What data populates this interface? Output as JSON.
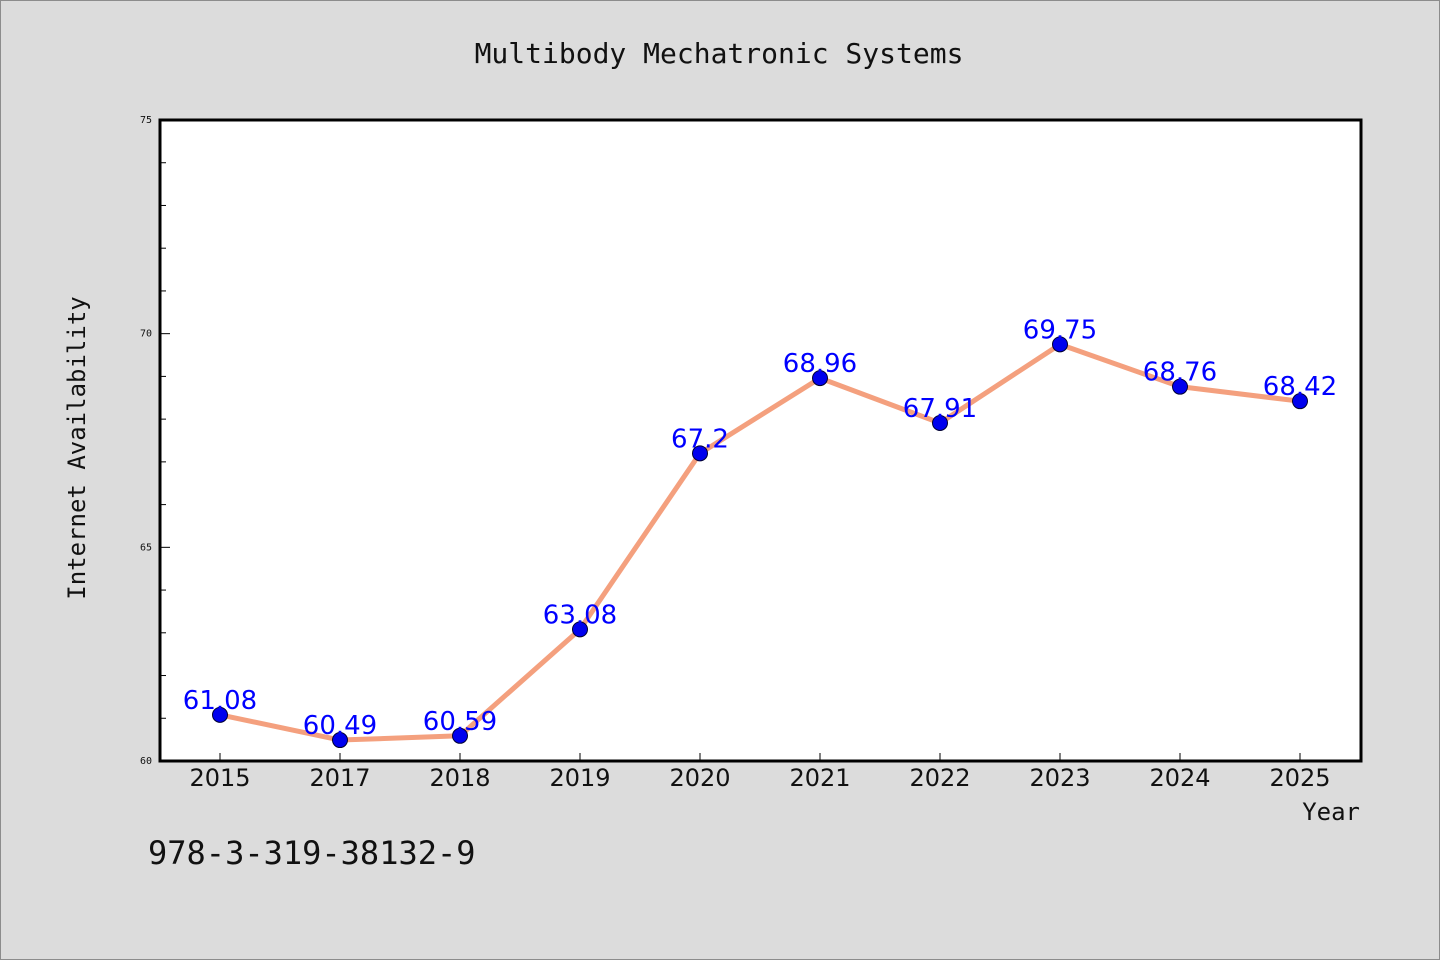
{
  "chart_data": {
    "type": "line",
    "title": "Multibody Mechatronic Systems",
    "xlabel": "Year",
    "ylabel": "Internet Availability",
    "categories": [
      "2015",
      "2017",
      "2018",
      "2019",
      "2020",
      "2021",
      "2022",
      "2023",
      "2024",
      "2025"
    ],
    "values": [
      61.08,
      60.49,
      60.59,
      63.08,
      67.2,
      68.96,
      67.91,
      69.75,
      68.76,
      68.42
    ],
    "data_labels": [
      "61.08",
      "60.49",
      "60.59",
      "63.08",
      "67.2",
      "68.96",
      "67.91",
      "69.75",
      "68.76",
      "68.42"
    ],
    "ylim": [
      60,
      75
    ],
    "yticks": [
      60,
      65,
      70,
      75
    ],
    "ytick_labels": [
      "60",
      "65",
      "70",
      "75"
    ],
    "grid": false,
    "legend": "none"
  },
  "footer": {
    "isbn": "978-3-319-38132-9"
  },
  "colors": {
    "background": "#dcdcdc",
    "plot_area": "#ffffff",
    "line": "#f4a07e",
    "marker": "#0000ee",
    "data_label": "#0000ff"
  }
}
